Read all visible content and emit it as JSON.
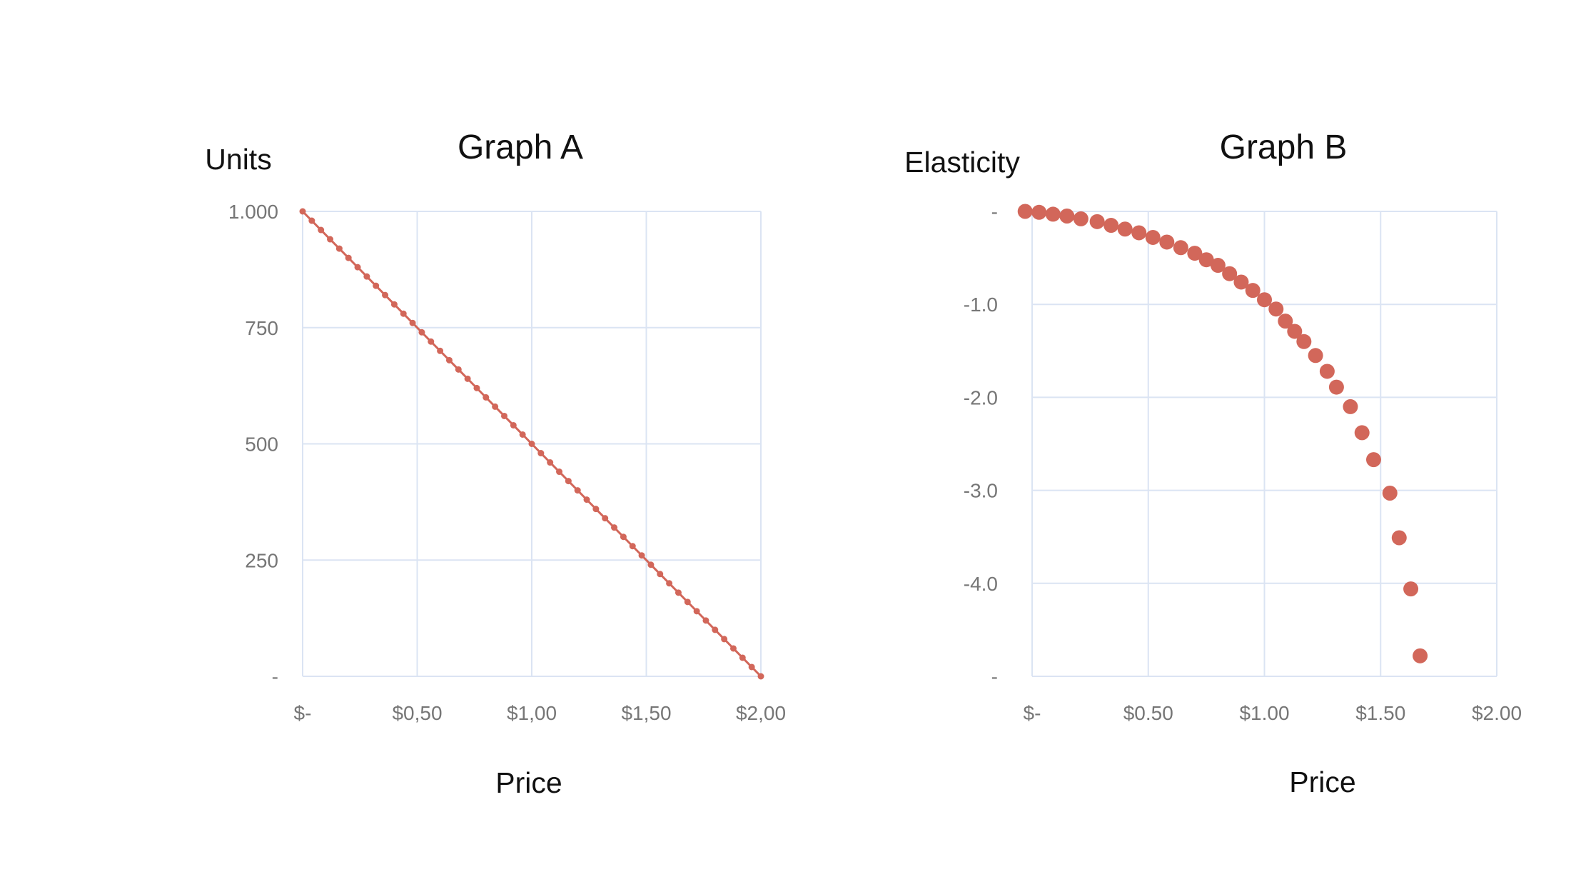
{
  "colors": {
    "series": "#d2675a",
    "grid": "#dbe4f3",
    "tick_text": "#767676",
    "title_text": "#111111"
  },
  "chart_data": [
    {
      "type": "line",
      "title": "Graph A",
      "xlabel": "Price",
      "ylabel": "Units",
      "xlim": [
        0,
        2
      ],
      "ylim": [
        0,
        1000
      ],
      "xticks": [
        0,
        0.5,
        1,
        1.5,
        2
      ],
      "xtick_labels": [
        "$-",
        "$0,50",
        "$1,00",
        "$1,50",
        "$2,00"
      ],
      "yticks": [
        0,
        250,
        500,
        750,
        1000
      ],
      "ytick_labels": [
        "-",
        "250",
        "500",
        "750",
        "1.000"
      ],
      "grid": true,
      "markers": true,
      "series": [
        {
          "x": [
            0,
            0.04,
            0.08,
            0.12,
            0.16,
            0.2,
            0.24,
            0.28,
            0.32,
            0.36,
            0.4,
            0.44,
            0.48,
            0.52,
            0.56,
            0.6,
            0.64,
            0.68,
            0.72,
            0.76,
            0.8,
            0.84,
            0.88,
            0.92,
            0.96,
            1.0,
            1.04,
            1.08,
            1.12,
            1.16,
            1.2,
            1.24,
            1.28,
            1.32,
            1.36,
            1.4,
            1.44,
            1.48,
            1.52,
            1.56,
            1.6,
            1.64,
            1.68,
            1.72,
            1.76,
            1.8,
            1.84,
            1.88,
            1.92,
            1.96,
            2.0
          ],
          "y": [
            1000,
            980,
            960,
            940,
            920,
            900,
            880,
            860,
            840,
            820,
            800,
            780,
            760,
            740,
            720,
            700,
            680,
            660,
            640,
            620,
            600,
            580,
            560,
            540,
            520,
            500,
            480,
            460,
            440,
            420,
            400,
            380,
            360,
            340,
            320,
            300,
            280,
            260,
            240,
            220,
            200,
            180,
            160,
            140,
            120,
            100,
            80,
            60,
            40,
            20,
            0
          ]
        }
      ]
    },
    {
      "type": "scatter",
      "title": "Graph B",
      "xlabel": "Price",
      "ylabel": "Elasticity",
      "xlim": [
        0,
        2
      ],
      "ylim": [
        -5,
        0
      ],
      "xticks": [
        0,
        0.5,
        1,
        1.5,
        2
      ],
      "xtick_labels": [
        "$-",
        "$0.50",
        "$1.00",
        "$1.50",
        "$2.00"
      ],
      "yticks": [
        0,
        -1,
        -2,
        -3,
        -4,
        -5
      ],
      "ytick_labels": [
        "-",
        "-1.0",
        "-2.0",
        "-3.0",
        "-4.0",
        "-"
      ],
      "grid": true,
      "series": [
        {
          "x": [
            -0.03,
            0.03,
            0.09,
            0.15,
            0.21,
            0.28,
            0.34,
            0.4,
            0.46,
            0.52,
            0.58,
            0.64,
            0.7,
            0.75,
            0.8,
            0.85,
            0.9,
            0.95,
            1.0,
            1.05,
            1.09,
            1.13,
            1.17,
            1.22,
            1.27,
            1.31,
            1.37,
            1.42,
            1.47,
            1.54,
            1.58,
            1.63,
            1.67
          ],
          "y": [
            0.0,
            -0.01,
            -0.03,
            -0.05,
            -0.08,
            -0.11,
            -0.15,
            -0.19,
            -0.23,
            -0.28,
            -0.33,
            -0.39,
            -0.45,
            -0.52,
            -0.58,
            -0.67,
            -0.76,
            -0.85,
            -0.95,
            -1.05,
            -1.18,
            -1.29,
            -1.4,
            -1.55,
            -1.72,
            -1.89,
            -2.1,
            -2.38,
            -2.67,
            -3.03,
            -3.51,
            -4.06,
            -4.78
          ]
        }
      ]
    }
  ]
}
